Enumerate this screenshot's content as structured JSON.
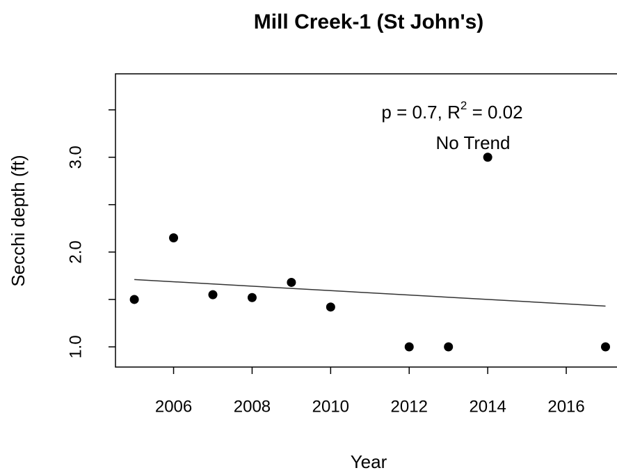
{
  "chart_data": {
    "type": "scatter",
    "title": "Mill Creek-1 (St John's)",
    "xlabel": "Year",
    "ylabel": "Secchi depth (ft)",
    "annotation": {
      "stat_prefix": "p = 0.7, R",
      "stat_sup": "2",
      "stat_suffix": " = 0.02",
      "trend": "No Trend"
    },
    "x": [
      2005,
      2006,
      2007,
      2008,
      2009,
      2010,
      2012,
      2013,
      2014,
      2017
    ],
    "values": [
      1.5,
      2.15,
      1.55,
      1.52,
      1.68,
      1.42,
      1.0,
      1.0,
      3.0,
      1.0
    ],
    "color": "#000000",
    "trend_line": {
      "x": [
        2005,
        2017
      ],
      "values": [
        1.71,
        1.43
      ],
      "color": "#333333"
    },
    "xlim": [
      2004.52,
      2017.48
    ],
    "xticks": [
      2006,
      2008,
      2010,
      2012,
      2014,
      2016
    ],
    "ylim": [
      0.787,
      3.88
    ],
    "yticks": [
      {
        "value": 1.0,
        "label": "1.0"
      },
      {
        "value": 2.0,
        "label": "2.0"
      },
      {
        "value": 3.0,
        "label": "3.0"
      }
    ],
    "yminor_ticks": [
      1.5,
      2.5,
      3.5
    ]
  }
}
